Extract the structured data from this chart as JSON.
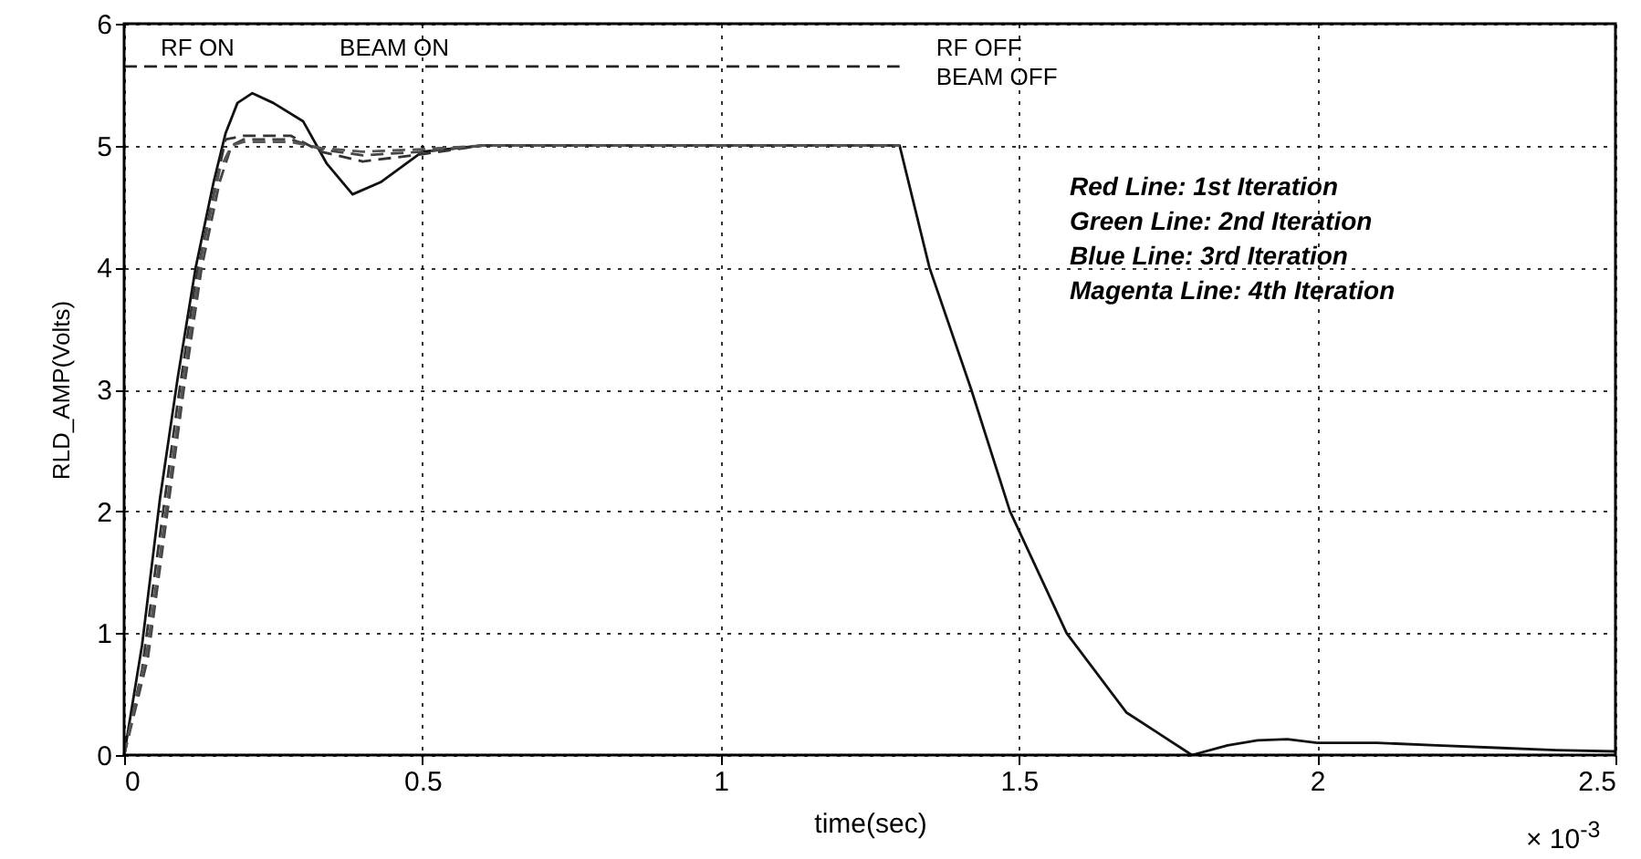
{
  "chart_data": {
    "type": "line",
    "xlabel": "time(sec)",
    "ylabel": "RLD_AMP(Volts)",
    "xlim": [
      0,
      2.5
    ],
    "ylim": [
      0,
      6
    ],
    "xticks": [
      0,
      0.5,
      1,
      1.5,
      2,
      2.5
    ],
    "yticks": [
      0,
      1,
      2,
      3,
      4,
      5,
      6
    ],
    "grid": true,
    "series": [
      {
        "color": "#111111",
        "line_style": "solid",
        "x": [
          0,
          0.03,
          0.06,
          0.09,
          0.12,
          0.15,
          0.17,
          0.19,
          0.215,
          0.25,
          0.3,
          0.34,
          0.383,
          0.43,
          0.5,
          0.6,
          0.8,
          1.0,
          1.3,
          1.35,
          1.42,
          1.485,
          1.58,
          1.68,
          1.79,
          1.85,
          1.9,
          1.95,
          2.0,
          2.1,
          2.2,
          2.3,
          2.4,
          2.5
        ],
        "values": [
          0,
          0.9,
          2.1,
          3.1,
          4.0,
          4.7,
          5.1,
          5.35,
          5.43,
          5.35,
          5.2,
          4.85,
          4.6,
          4.7,
          4.95,
          5.0,
          5.0,
          5.0,
          5.0,
          4.0,
          3.0,
          2.0,
          1.0,
          0.35,
          0,
          0.08,
          0.12,
          0.13,
          0.1,
          0.1,
          0.08,
          0.06,
          0.04,
          0.03
        ]
      },
      {
        "color": "#333333",
        "line_style": "dashed",
        "x": [
          0,
          0.03,
          0.06,
          0.09,
          0.12,
          0.15,
          0.17,
          0.2,
          0.28,
          0.33,
          0.4,
          0.5,
          0.6,
          1.0,
          1.3
        ],
        "values": [
          0,
          0.7,
          1.8,
          2.9,
          3.9,
          4.6,
          5.05,
          5.08,
          5.08,
          4.95,
          4.87,
          4.93,
          5.0,
          5.0,
          5.0
        ]
      },
      {
        "color": "#444444",
        "line_style": "dashed",
        "x": [
          0,
          0.04,
          0.07,
          0.1,
          0.13,
          0.16,
          0.18,
          0.2,
          0.28,
          0.33,
          0.4,
          0.5,
          0.6,
          1.0,
          1.3
        ],
        "values": [
          0,
          0.8,
          1.9,
          3.0,
          4.0,
          4.7,
          5.0,
          5.05,
          5.05,
          4.97,
          4.92,
          4.95,
          5.0,
          5.0,
          5.0
        ]
      },
      {
        "color": "#555555",
        "line_style": "dashed",
        "x": [
          0,
          0.04,
          0.07,
          0.1,
          0.13,
          0.16,
          0.18,
          0.2,
          0.28,
          0.33,
          0.4,
          0.5,
          0.6,
          1.0,
          1.3
        ],
        "values": [
          0,
          0.9,
          2.0,
          3.1,
          4.1,
          4.8,
          5.0,
          5.03,
          5.03,
          4.98,
          4.95,
          4.97,
          5.0,
          5.0,
          5.0
        ]
      },
      {
        "color": "#222222",
        "line_style": "dashed",
        "x": [
          0,
          1.3
        ],
        "values": [
          5.65,
          5.65
        ]
      }
    ],
    "annotations": [
      {
        "text": "RF ON",
        "x": 0,
        "y": 5.65
      },
      {
        "text": "BEAM ON",
        "x": 0.3,
        "y": 5.65
      },
      {
        "text": "RF OFF",
        "x": 1.3,
        "y": 5.65
      },
      {
        "text": "BEAM OFF",
        "x": 1.3,
        "y": 5.65
      },
      "Red Line: 1st Iteration",
      "Green Line: 2nd Iteration",
      "Blue Line: 3rd Iteration",
      "Magenta Line: 4th Iteration",
      "× 10$^{-3}$"
    ]
  }
}
